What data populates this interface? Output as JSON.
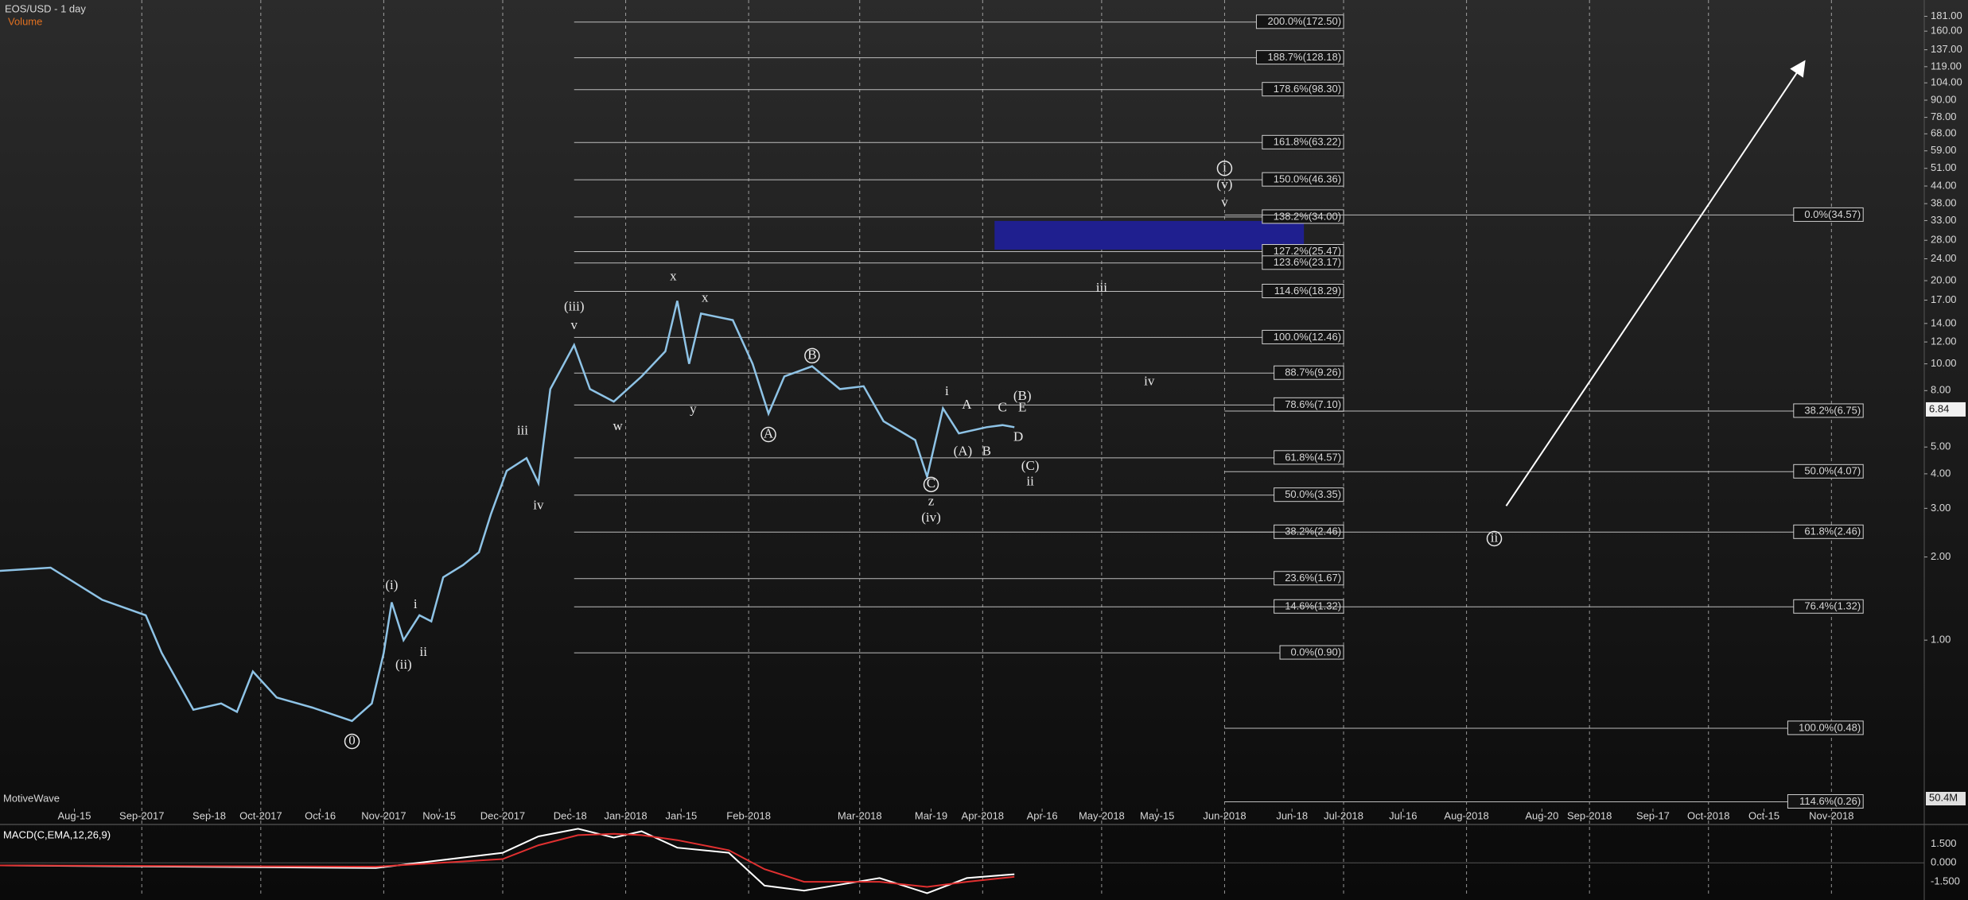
{
  "chart_data": {
    "type": "line",
    "title": "EOS/USD - 1 day",
    "volume_label": "Volume",
    "watermark": "MotiveWave",
    "log_scale": true,
    "xlim": [
      -4.75,
      480.4
    ],
    "ylim": [
      0.249,
      207.4
    ],
    "xticks_major": [
      {
        "value": 31,
        "label": "Sep-2017"
      },
      {
        "value": 61,
        "label": "Oct-2017"
      },
      {
        "value": 92,
        "label": "Nov-2017"
      },
      {
        "value": 122,
        "label": "Dec-2017"
      },
      {
        "value": 153,
        "label": "Jan-2018"
      },
      {
        "value": 184,
        "label": "Feb-2018"
      },
      {
        "value": 212,
        "label": "Mar-2018"
      },
      {
        "value": 243,
        "label": "Apr-2018"
      },
      {
        "value": 273,
        "label": "May-2018"
      },
      {
        "value": 304,
        "label": "Jun-2018"
      },
      {
        "value": 334,
        "label": "Jul-2018"
      },
      {
        "value": 365,
        "label": "Aug-2018"
      },
      {
        "value": 396,
        "label": "Sep-2018"
      },
      {
        "value": 426,
        "label": "Oct-2018"
      },
      {
        "value": 457,
        "label": "Nov-2018"
      }
    ],
    "xticks_minor": [
      {
        "value": 14,
        "label": "Aug-15"
      },
      {
        "value": 48,
        "label": "Sep-18"
      },
      {
        "value": 76,
        "label": "Oct-16"
      },
      {
        "value": 106,
        "label": "Nov-15"
      },
      {
        "value": 139,
        "label": "Dec-18"
      },
      {
        "value": 167,
        "label": "Jan-15"
      },
      {
        "value": 230,
        "label": "Mar-19"
      },
      {
        "value": 258,
        "label": "Apr-16"
      },
      {
        "value": 287,
        "label": "May-15"
      },
      {
        "value": 321,
        "label": "Jun-18"
      },
      {
        "value": 349,
        "label": "Jul-16"
      },
      {
        "value": 384,
        "label": "Aug-20"
      },
      {
        "value": 412,
        "label": "Sep-17"
      },
      {
        "value": 440,
        "label": "Oct-15"
      }
    ],
    "yticks": [
      {
        "value": 181,
        "label": "181.00"
      },
      {
        "value": 160,
        "label": "160.00"
      },
      {
        "value": 137,
        "label": "137.00"
      },
      {
        "value": 119,
        "label": "119.00"
      },
      {
        "value": 104,
        "label": "104.00"
      },
      {
        "value": 90,
        "label": "90.00"
      },
      {
        "value": 78,
        "label": "78.00"
      },
      {
        "value": 68,
        "label": "68.00"
      },
      {
        "value": 59,
        "label": "59.00"
      },
      {
        "value": 51,
        "label": "51.00"
      },
      {
        "value": 44,
        "label": "44.00"
      },
      {
        "value": 38,
        "label": "38.00"
      },
      {
        "value": 33,
        "label": "33.00"
      },
      {
        "value": 28,
        "label": "28.00"
      },
      {
        "value": 24,
        "label": "24.00"
      },
      {
        "value": 20,
        "label": "20.00"
      },
      {
        "value": 17,
        "label": "17.00"
      },
      {
        "value": 14,
        "label": "14.00"
      },
      {
        "value": 12,
        "label": "12.00"
      },
      {
        "value": 10,
        "label": "10.00"
      },
      {
        "value": 8,
        "label": "8.00"
      },
      {
        "value": 5,
        "label": "5.00"
      },
      {
        "value": 4,
        "label": "4.00"
      },
      {
        "value": 3,
        "label": "3.00"
      },
      {
        "value": 2,
        "label": "2.00"
      },
      {
        "value": 1,
        "label": "1.00"
      }
    ],
    "last_price": 6.84,
    "volume_axis_label": "50.4M",
    "series": [
      {
        "name": "EOS/USD",
        "color": "#8ec3e6",
        "x": [
          -5,
          8,
          21,
          32,
          36,
          44,
          51,
          55,
          59,
          65,
          74,
          84,
          89,
          92,
          94,
          97,
          101,
          104,
          107,
          112,
          116,
          119,
          123,
          128,
          131,
          134,
          140,
          144,
          150,
          157,
          163,
          166,
          169,
          172,
          180,
          185,
          189,
          193,
          200,
          207,
          213,
          218,
          226,
          229,
          233,
          237,
          244,
          248,
          251
        ],
        "values": [
          1.78,
          1.83,
          1.4,
          1.23,
          0.9,
          0.56,
          0.59,
          0.55,
          0.77,
          0.62,
          0.57,
          0.51,
          0.59,
          0.9,
          1.37,
          1.0,
          1.23,
          1.17,
          1.69,
          1.87,
          2.08,
          2.85,
          4.1,
          4.56,
          3.7,
          8.1,
          11.7,
          8.1,
          7.3,
          9.0,
          11.1,
          16.9,
          10.0,
          15.2,
          14.4,
          10.0,
          6.6,
          9.0,
          9.8,
          8.1,
          8.3,
          6.2,
          5.3,
          3.9,
          6.9,
          5.6,
          5.9,
          6.0,
          5.9
        ]
      }
    ],
    "fib_sets": [
      {
        "start": 140,
        "end": 334,
        "levels": [
          {
            "label": "200.0%(172.50)",
            "value": 172.5
          },
          {
            "label": "188.7%(128.18)",
            "value": 128.18
          },
          {
            "label": "178.6%(98.30)",
            "value": 98.3
          },
          {
            "label": "161.8%(63.22)",
            "value": 63.22
          },
          {
            "label": "150.0%(46.36)",
            "value": 46.36
          },
          {
            "label": "138.2%(34.00)",
            "value": 34.0
          },
          {
            "label": "127.2%(25.47)",
            "value": 25.47
          },
          {
            "label": "123.6%(23.17)",
            "value": 23.17
          },
          {
            "label": "114.6%(18.29)",
            "value": 18.29
          },
          {
            "label": "100.0%(12.46)",
            "value": 12.46
          },
          {
            "label": "88.7%(9.26)",
            "value": 9.26
          },
          {
            "label": "78.6%(7.10)",
            "value": 7.1
          },
          {
            "label": "61.8%(4.57)",
            "value": 4.57
          },
          {
            "label": "50.0%(3.35)",
            "value": 3.35
          },
          {
            "label": "38.2%(2.46)",
            "value": 2.46
          },
          {
            "label": "23.6%(1.67)",
            "value": 1.67
          },
          {
            "label": "14.6%(1.32)",
            "value": 1.32
          },
          {
            "label": "0.0%(0.90)",
            "value": 0.9
          }
        ]
      },
      {
        "start": 304,
        "end": 465,
        "levels": [
          {
            "label": "0.0%(34.57)",
            "value": 34.57
          },
          {
            "label": "38.2%(6.75)",
            "value": 6.75
          },
          {
            "label": "50.0%(4.07)",
            "value": 4.07
          },
          {
            "label": "61.8%(2.46)",
            "value": 2.46
          },
          {
            "label": "76.4%(1.32)",
            "value": 1.32
          },
          {
            "label": "100.0%(0.48)",
            "value": 0.48
          },
          {
            "label": "114.6%(0.26)",
            "value": 0.26
          }
        ]
      }
    ],
    "target_zone": {
      "x": [
        246,
        324
      ],
      "y": [
        25.9,
        32.9
      ],
      "color": "#1f1f8f"
    },
    "arrow": {
      "x": [
        375,
        450
      ],
      "y": [
        3.06,
        123
      ],
      "color": "#ffffff"
    },
    "annotations": [
      {
        "text": "x",
        "x": 165,
        "y": 20.6
      },
      {
        "text": "x",
        "x": 173,
        "y": 17.2
      },
      {
        "text": "(iii)",
        "x": 140,
        "y": 16.0
      },
      {
        "text": "v",
        "x": 140,
        "y": 13.7
      },
      {
        "text": "w",
        "x": 151,
        "y": 5.9
      },
      {
        "text": "y",
        "x": 170,
        "y": 6.8
      },
      {
        "text": "iii",
        "x": 127,
        "y": 5.7
      },
      {
        "text": "iv",
        "x": 131,
        "y": 3.06
      },
      {
        "text": "(i)",
        "x": 94,
        "y": 1.57
      },
      {
        "text": "i",
        "x": 100,
        "y": 1.34
      },
      {
        "text": "(ii)",
        "x": 97,
        "y": 0.81
      },
      {
        "text": "ii",
        "x": 102,
        "y": 0.9
      },
      {
        "text": "0",
        "x": 84,
        "y": 0.43,
        "circled": true
      },
      {
        "text": "A",
        "x": 189,
        "y": 5.55,
        "circled": true
      },
      {
        "text": "B",
        "x": 200,
        "y": 10.7,
        "circled": true
      },
      {
        "text": "C",
        "x": 230,
        "y": 3.66,
        "circled": true
      },
      {
        "text": "z",
        "x": 230,
        "y": 3.16
      },
      {
        "text": "(iv)",
        "x": 230,
        "y": 2.76
      },
      {
        "text": "i",
        "x": 234,
        "y": 7.9
      },
      {
        "text": "A",
        "x": 239,
        "y": 7.07
      },
      {
        "text": "(A)",
        "x": 238,
        "y": 4.8
      },
      {
        "text": "B",
        "x": 244,
        "y": 4.8
      },
      {
        "text": "C",
        "x": 248,
        "y": 6.9
      },
      {
        "text": "(B)",
        "x": 253,
        "y": 7.6
      },
      {
        "text": "E",
        "x": 253,
        "y": 6.9
      },
      {
        "text": "D",
        "x": 252,
        "y": 5.4
      },
      {
        "text": "(C)",
        "x": 255,
        "y": 4.24
      },
      {
        "text": "ii",
        "x": 255,
        "y": 3.73
      },
      {
        "text": "iii",
        "x": 273,
        "y": 18.7
      },
      {
        "text": "iv",
        "x": 285,
        "y": 8.6
      },
      {
        "text": "i",
        "x": 304,
        "y": 51.0,
        "circled": true
      },
      {
        "text": "(v)",
        "x": 304,
        "y": 44.2
      },
      {
        "text": "v",
        "x": 304,
        "y": 38.2
      },
      {
        "text": "ii",
        "x": 372,
        "y": 2.33,
        "circled": true
      }
    ],
    "macd": {
      "title": "MACD(C,EMA,12,26,9)",
      "ylim": [
        -2.5,
        2.79
      ],
      "yticks": [
        {
          "value": 1.5,
          "label": "1.500"
        },
        {
          "value": 0,
          "label": "0.000"
        },
        {
          "value": -1.5,
          "label": "-1.500"
        }
      ],
      "x": [
        -5,
        90,
        122,
        131,
        141,
        150,
        157,
        166,
        179,
        188,
        198,
        217,
        229,
        239,
        251
      ],
      "series": [
        {
          "name": "MACD",
          "color": "#ffffff",
          "values": [
            -0.2,
            -0.4,
            0.8,
            2.1,
            2.7,
            2.0,
            2.5,
            1.2,
            0.8,
            -1.8,
            -2.2,
            -1.2,
            -2.4,
            -1.2,
            -0.9
          ]
        },
        {
          "name": "Signal",
          "color": "#e03030",
          "values": [
            -0.2,
            -0.3,
            0.3,
            1.4,
            2.2,
            2.3,
            2.2,
            1.8,
            1.0,
            -0.5,
            -1.5,
            -1.5,
            -1.9,
            -1.5,
            -1.1
          ]
        }
      ]
    }
  }
}
